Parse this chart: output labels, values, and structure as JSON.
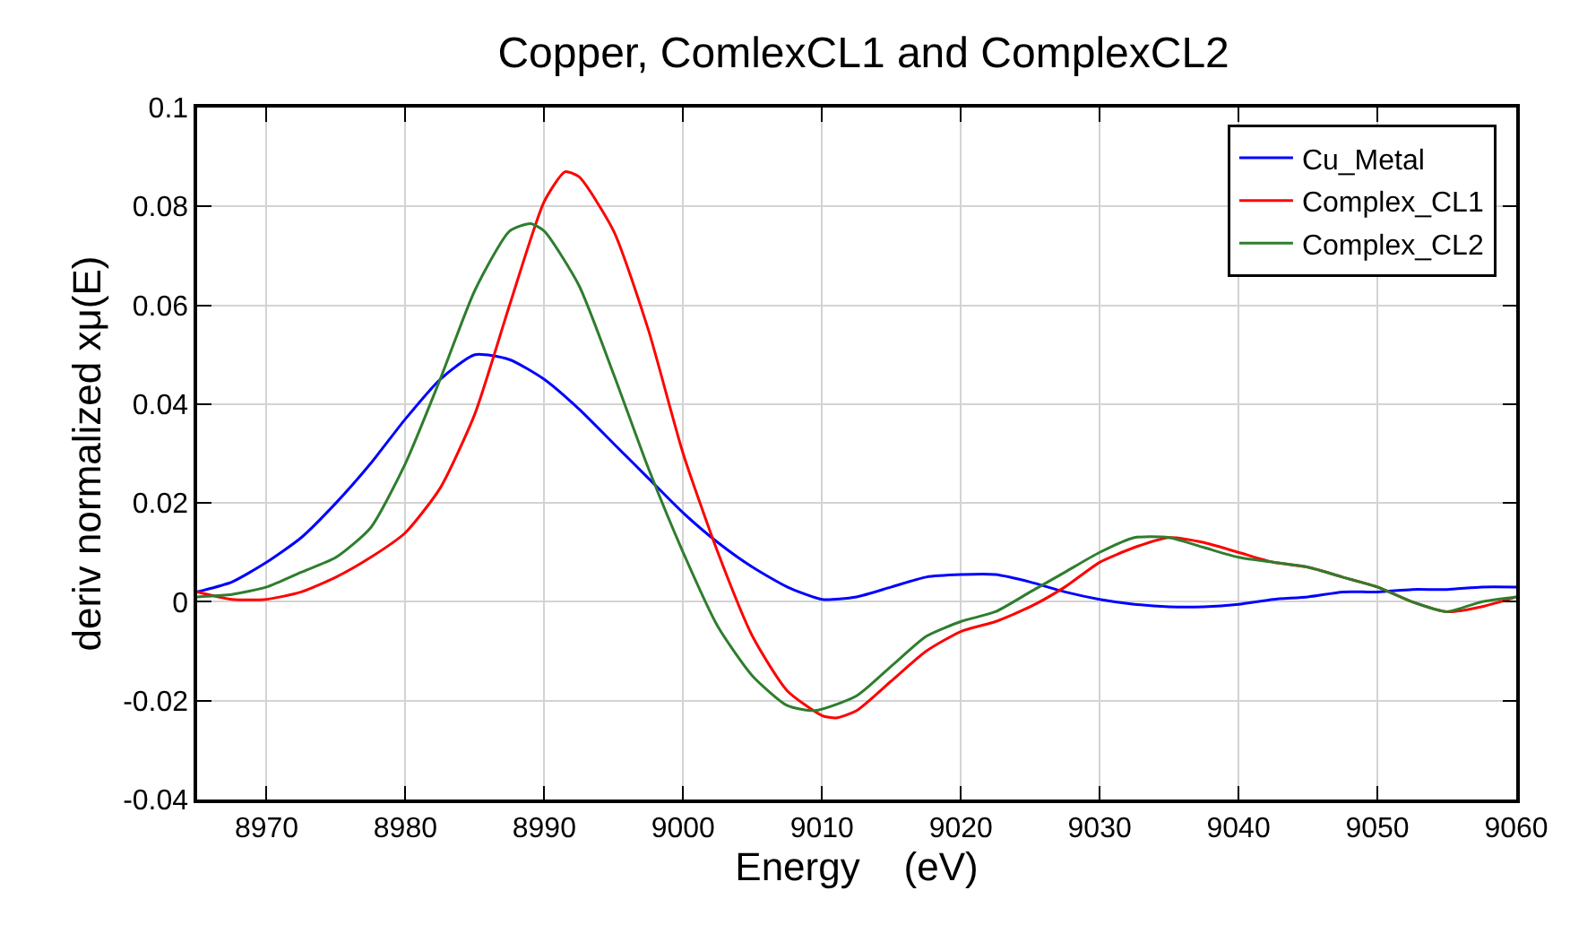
{
  "chart_data": {
    "type": "line",
    "title": "Copper, ComlexCL1 and ComplexCL2",
    "xlabel": "Energy    (eV)",
    "ylabel": "deriv normalized xμ(E)",
    "xlim": [
      8965,
      9060
    ],
    "xticks": [
      8970,
      8980,
      8990,
      9000,
      9010,
      9020,
      9030,
      9040,
      9050,
      9060
    ],
    "ylim": [
      -0.04,
      0.1
    ],
    "yticks": [
      -0.04,
      -0.02,
      0,
      0.02,
      0.04,
      0.06,
      0.08,
      0.1
    ],
    "grid": true,
    "legend": "top right",
    "marker": "none",
    "line_style": "solid",
    "series": [
      {
        "name": "Cu_Metal",
        "color": "#0000ff",
        "x": [
          8965,
          8967.5,
          8970,
          8972.5,
          8975,
          8977.5,
          8980,
          8982.5,
          8985,
          8987.5,
          8990,
          8992.5,
          8995,
          8997.5,
          9000,
          9002.5,
          9005,
          9007.5,
          9010,
          9012.5,
          9015,
          9017.5,
          9020,
          9022.5,
          9025,
          9027.5,
          9030,
          9032.5,
          9035,
          9037.5,
          9040,
          9042.5,
          9045,
          9047.5,
          9050,
          9052.5,
          9055,
          9057.5,
          9060
        ],
        "values": [
          0.002,
          0.004,
          0.008,
          0.013,
          0.02,
          0.028,
          0.037,
          0.045,
          0.05,
          0.049,
          0.045,
          0.039,
          0.032,
          0.025,
          0.018,
          0.012,
          0.007,
          0.003,
          0.0005,
          0.001,
          0.003,
          0.005,
          0.0055,
          0.0055,
          0.004,
          0.002,
          0.0005,
          -0.0005,
          -0.001,
          -0.001,
          -0.0005,
          0.0005,
          0.001,
          0.002,
          0.002,
          0.0025,
          0.0025,
          0.003,
          0.003
        ]
      },
      {
        "name": "Complex_CL1",
        "color": "#ff0000",
        "x": [
          8965,
          8967.5,
          8970,
          8972.5,
          8975,
          8977.5,
          8980,
          8982.5,
          8985,
          8987.5,
          8990,
          8991.5,
          8992.5,
          8995,
          8997.5,
          9000,
          9002.5,
          9005,
          9007.5,
          9010,
          9011,
          9012.5,
          9015,
          9017.5,
          9020,
          9022.5,
          9025,
          9027.5,
          9030,
          9032.5,
          9035,
          9037.5,
          9040,
          9042.5,
          9045,
          9047.5,
          9050,
          9052.5,
          9055,
          9057.5,
          9060
        ],
        "values": [
          0.002,
          0.0005,
          0.0005,
          0.002,
          0.005,
          0.009,
          0.014,
          0.023,
          0.038,
          0.06,
          0.081,
          0.087,
          0.086,
          0.075,
          0.055,
          0.03,
          0.01,
          -0.007,
          -0.018,
          -0.023,
          -0.0235,
          -0.022,
          -0.016,
          -0.01,
          -0.006,
          -0.004,
          -0.001,
          0.003,
          0.008,
          0.011,
          0.013,
          0.012,
          0.01,
          0.008,
          0.007,
          0.005,
          0.003,
          0.0,
          -0.002,
          -0.001,
          0.001
        ]
      },
      {
        "name": "Complex_CL2",
        "color": "#2e7d2e",
        "x": [
          8965,
          8967.5,
          8970,
          8972.5,
          8975,
          8977.5,
          8980,
          8982.5,
          8985,
          8987.5,
          8989,
          8990,
          8992.5,
          8995,
          8997.5,
          9000,
          9002.5,
          9005,
          9007.5,
          9009.5,
          9012.5,
          9015,
          9017.5,
          9020,
          9022.5,
          9025,
          9027.5,
          9030,
          9032.5,
          9035,
          9037.5,
          9040,
          9042.5,
          9045,
          9047.5,
          9050,
          9052.5,
          9055,
          9057.5,
          9060
        ],
        "values": [
          0.001,
          0.0015,
          0.003,
          0.006,
          0.009,
          0.015,
          0.028,
          0.045,
          0.063,
          0.075,
          0.0765,
          0.075,
          0.064,
          0.046,
          0.027,
          0.01,
          -0.005,
          -0.015,
          -0.021,
          -0.022,
          -0.019,
          -0.013,
          -0.007,
          -0.004,
          -0.002,
          0.002,
          0.006,
          0.01,
          0.013,
          0.013,
          0.011,
          0.009,
          0.008,
          0.007,
          0.005,
          0.003,
          0.0,
          -0.002,
          0.0,
          0.001
        ]
      }
    ]
  }
}
